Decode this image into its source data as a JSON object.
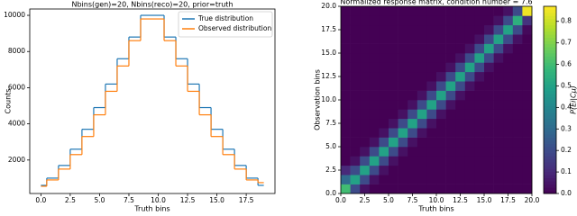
{
  "chart_data": [
    {
      "type": "line",
      "step": "mid",
      "title": "Nbins(gen)=20, Nbins(reco)=20, prior=truth",
      "x_label": "Truth bins",
      "y_label": "Counts",
      "x": [
        0,
        1,
        2,
        3,
        4,
        5,
        6,
        7,
        8,
        9,
        10,
        11,
        12,
        13,
        14,
        15,
        16,
        17,
        18,
        19
      ],
      "series": [
        {
          "name": "True distribution",
          "color": "#1f77b4",
          "values": [
            600,
            1000,
            1700,
            2600,
            3700,
            4900,
            6200,
            7600,
            8800,
            10000,
            10000,
            8800,
            7600,
            6200,
            4900,
            3700,
            2600,
            1700,
            1000,
            600
          ]
        },
        {
          "name": "Observed distribution",
          "color": "#ff7f0e",
          "values": [
            550,
            900,
            1500,
            2300,
            3300,
            4500,
            5800,
            7200,
            8600,
            9800,
            9800,
            8600,
            7200,
            5800,
            4500,
            3300,
            2300,
            1500,
            900,
            750
          ]
        }
      ],
      "xlim": [
        -0.95,
        19.95
      ],
      "xticks": [
        {
          "value": 0,
          "label": "0.0"
        },
        {
          "value": 2.5,
          "label": "2.5"
        },
        {
          "value": 5,
          "label": "5.0"
        },
        {
          "value": 7.5,
          "label": "7.5"
        },
        {
          "value": 10,
          "label": "10.0"
        },
        {
          "value": 12.5,
          "label": "12.5"
        },
        {
          "value": 15,
          "label": "15.0"
        },
        {
          "value": 17.5,
          "label": "17.5"
        }
      ],
      "ylim": [
        150,
        10350
      ],
      "yticks": [
        2000,
        4000,
        6000,
        8000,
        10000
      ],
      "legend": "upper right"
    },
    {
      "type": "heatmap",
      "title": "Normalized response matrix, condition number = 7.6",
      "x_label": "Truth bins",
      "y_label": "Observation bins",
      "colorbar_label": "P(Ei|Cμ)",
      "colormap": "viridis",
      "z": [
        [
          0.6,
          0.2,
          0.04,
          0,
          0,
          0,
          0,
          0,
          0,
          0,
          0,
          0,
          0,
          0,
          0,
          0,
          0,
          0,
          0,
          0
        ],
        [
          0.3,
          0.5,
          0.2,
          0.04,
          0,
          0,
          0,
          0,
          0,
          0,
          0,
          0,
          0,
          0,
          0,
          0,
          0,
          0,
          0,
          0
        ],
        [
          0.1,
          0.2,
          0.5,
          0.2,
          0.04,
          0,
          0,
          0,
          0,
          0,
          0,
          0,
          0,
          0,
          0,
          0,
          0,
          0,
          0,
          0
        ],
        [
          0,
          0.04,
          0.2,
          0.5,
          0.2,
          0.04,
          0,
          0,
          0,
          0,
          0,
          0,
          0,
          0,
          0,
          0,
          0,
          0,
          0,
          0
        ],
        [
          0,
          0,
          0.04,
          0.2,
          0.5,
          0.2,
          0.04,
          0,
          0,
          0,
          0,
          0,
          0,
          0,
          0,
          0,
          0,
          0,
          0,
          0
        ],
        [
          0,
          0,
          0,
          0.04,
          0.2,
          0.5,
          0.2,
          0.04,
          0,
          0,
          0,
          0,
          0,
          0,
          0,
          0,
          0,
          0,
          0,
          0
        ],
        [
          0,
          0,
          0,
          0,
          0.04,
          0.2,
          0.5,
          0.2,
          0.04,
          0,
          0,
          0,
          0,
          0,
          0,
          0,
          0,
          0,
          0,
          0
        ],
        [
          0,
          0,
          0,
          0,
          0,
          0.04,
          0.2,
          0.5,
          0.2,
          0.04,
          0,
          0,
          0,
          0,
          0,
          0,
          0,
          0,
          0,
          0
        ],
        [
          0,
          0,
          0,
          0,
          0,
          0,
          0.04,
          0.2,
          0.5,
          0.2,
          0.04,
          0,
          0,
          0,
          0,
          0,
          0,
          0,
          0,
          0
        ],
        [
          0,
          0,
          0,
          0,
          0,
          0,
          0,
          0.04,
          0.2,
          0.5,
          0.2,
          0.04,
          0,
          0,
          0,
          0,
          0,
          0,
          0,
          0
        ],
        [
          0,
          0,
          0,
          0,
          0,
          0,
          0,
          0,
          0.04,
          0.2,
          0.5,
          0.2,
          0.04,
          0,
          0,
          0,
          0,
          0,
          0,
          0
        ],
        [
          0,
          0,
          0,
          0,
          0,
          0,
          0,
          0,
          0,
          0.04,
          0.2,
          0.5,
          0.2,
          0.04,
          0,
          0,
          0,
          0,
          0,
          0
        ],
        [
          0,
          0,
          0,
          0,
          0,
          0,
          0,
          0,
          0,
          0,
          0.04,
          0.2,
          0.5,
          0.2,
          0.04,
          0,
          0,
          0,
          0,
          0
        ],
        [
          0,
          0,
          0,
          0,
          0,
          0,
          0,
          0,
          0,
          0,
          0,
          0.04,
          0.2,
          0.5,
          0.2,
          0.04,
          0,
          0,
          0,
          0
        ],
        [
          0,
          0,
          0,
          0,
          0,
          0,
          0,
          0,
          0,
          0,
          0,
          0,
          0.04,
          0.2,
          0.5,
          0.2,
          0.04,
          0,
          0,
          0
        ],
        [
          0,
          0,
          0,
          0,
          0,
          0,
          0,
          0,
          0,
          0,
          0,
          0,
          0,
          0.04,
          0.2,
          0.5,
          0.2,
          0.04,
          0,
          0
        ],
        [
          0,
          0,
          0,
          0,
          0,
          0,
          0,
          0,
          0,
          0,
          0,
          0,
          0,
          0,
          0.04,
          0.2,
          0.5,
          0.2,
          0.04,
          0
        ],
        [
          0,
          0,
          0,
          0,
          0,
          0,
          0,
          0,
          0,
          0,
          0,
          0,
          0,
          0,
          0,
          0.04,
          0.2,
          0.5,
          0.2,
          0.02
        ],
        [
          0,
          0,
          0,
          0,
          0,
          0,
          0,
          0,
          0,
          0,
          0,
          0,
          0,
          0,
          0,
          0,
          0.04,
          0.2,
          0.55,
          0.13
        ],
        [
          0,
          0,
          0,
          0,
          0,
          0,
          0,
          0,
          0,
          0,
          0,
          0,
          0,
          0,
          0,
          0,
          0,
          0.04,
          0.2,
          0.85
        ]
      ],
      "xlim": [
        0,
        20
      ],
      "ylim": [
        0,
        20
      ],
      "xticks": [
        {
          "value": 0,
          "label": "0.0"
        },
        {
          "value": 2.5,
          "label": "2.5"
        },
        {
          "value": 5,
          "label": "5.0"
        },
        {
          "value": 7.5,
          "label": "7.5"
        },
        {
          "value": 10,
          "label": "10.0"
        },
        {
          "value": 12.5,
          "label": "12.5"
        },
        {
          "value": 15,
          "label": "15.0"
        },
        {
          "value": 17.5,
          "label": "17.5"
        },
        {
          "value": 20,
          "label": "20.0"
        }
      ],
      "yticks": [
        {
          "value": 0,
          "label": "0.0"
        },
        {
          "value": 2.5,
          "label": "2.5"
        },
        {
          "value": 5,
          "label": "5.0"
        },
        {
          "value": 7.5,
          "label": "7.5"
        },
        {
          "value": 10,
          "label": "10.0"
        },
        {
          "value": 12.5,
          "label": "12.5"
        },
        {
          "value": 15,
          "label": "15.0"
        },
        {
          "value": 17.5,
          "label": "17.5"
        },
        {
          "value": 20,
          "label": "20.0"
        }
      ],
      "zlim": [
        0,
        0.87
      ],
      "zticks": [
        {
          "value": 0,
          "label": "0.0"
        },
        {
          "value": 0.1,
          "label": "0.1"
        },
        {
          "value": 0.2,
          "label": "0.2"
        },
        {
          "value": 0.3,
          "label": "0.3"
        },
        {
          "value": 0.4,
          "label": "0.4"
        },
        {
          "value": 0.5,
          "label": "0.5"
        },
        {
          "value": 0.6,
          "label": "0.6"
        },
        {
          "value": 0.7,
          "label": "0.7"
        },
        {
          "value": 0.8,
          "label": "0.8"
        }
      ]
    }
  ]
}
